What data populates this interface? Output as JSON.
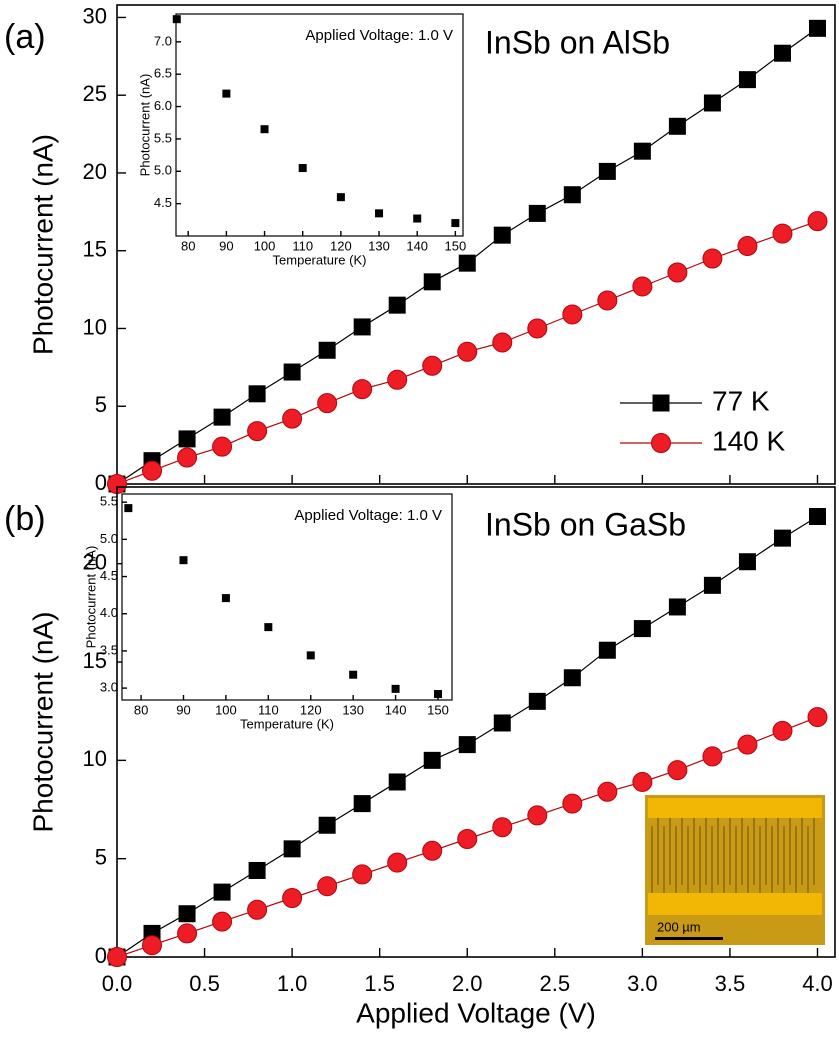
{
  "chart_data": [
    {
      "type": "line",
      "panel_label": "(a)",
      "title": "InSb on AlSb",
      "ylabel": "Photocurrent (nA)",
      "xlim": [
        0,
        4.1
      ],
      "ylim": [
        0,
        30.8
      ],
      "yticks": [
        0,
        5,
        10,
        15,
        20,
        25,
        30
      ],
      "legend": "right",
      "x": [
        0,
        0.2,
        0.4,
        0.6,
        0.8,
        1.0,
        1.2,
        1.4,
        1.6,
        1.8,
        2.0,
        2.2,
        2.4,
        2.6,
        2.8,
        3.0,
        3.2,
        3.4,
        3.6,
        3.8,
        4.0
      ],
      "series": [
        {
          "name": "77 K",
          "color": "#000000",
          "marker": "square",
          "values": [
            0,
            1.5,
            2.9,
            4.3,
            5.8,
            7.2,
            8.6,
            10.1,
            11.5,
            13.0,
            14.2,
            16.0,
            17.4,
            18.6,
            20.1,
            21.4,
            23.0,
            24.5,
            26.0,
            27.7,
            29.3
          ]
        },
        {
          "name": "140 K",
          "color": "#ee1c24",
          "marker": "circle",
          "values": [
            0,
            0.85,
            1.7,
            2.4,
            3.4,
            4.2,
            5.2,
            6.1,
            6.7,
            7.6,
            8.5,
            9.1,
            10.0,
            10.9,
            11.8,
            12.7,
            13.6,
            14.5,
            15.3,
            16.1,
            16.9
          ]
        }
      ]
    },
    {
      "type": "scatter",
      "annotation": "Applied Voltage: 1.0 V",
      "xlabel": "Temperature (K)",
      "ylabel": "Photocurrent (nA)",
      "xlim": [
        76.8,
        152
      ],
      "ylim": [
        4.0,
        7.43
      ],
      "xticks": [
        80,
        90,
        100,
        110,
        120,
        130,
        140,
        150
      ],
      "yticks": [
        {
          "value": 4.5,
          "label": "4.5"
        },
        {
          "value": 5.0,
          "label": "5.0"
        },
        {
          "value": 5.5,
          "label": "5.5"
        },
        {
          "value": 6.0,
          "label": "6.0"
        },
        {
          "value": 6.5,
          "label": "6.5"
        },
        {
          "value": 7.0,
          "label": "7.0"
        }
      ],
      "x": [
        77,
        90,
        100,
        110,
        120,
        130,
        140,
        150
      ],
      "series": [
        {
          "color": "#000000",
          "values": [
            7.35,
            6.2,
            5.65,
            5.05,
            4.6,
            4.35,
            4.27,
            4.2
          ]
        }
      ]
    },
    {
      "type": "line",
      "panel_label": "(b)",
      "title": "InSb on GaSb",
      "ylabel": "Photocurrent (nA)",
      "xlabel": "Applied Voltage (V)",
      "scale_bar_label": "200 µm",
      "xlim": [
        0,
        4.1
      ],
      "ylim": [
        0,
        23.9
      ],
      "yticks": [
        0,
        5,
        10,
        15,
        20
      ],
      "xticks": [
        {
          "value": 0,
          "label": "0.0"
        },
        0.5,
        {
          "value": 1,
          "label": "1.0"
        },
        1.5,
        {
          "value": 2,
          "label": "2.0"
        },
        2.5,
        {
          "value": 3,
          "label": "3.0"
        },
        3.5,
        {
          "value": 4,
          "label": "4.0"
        }
      ],
      "x": [
        0,
        0.2,
        0.4,
        0.6,
        0.8,
        1.0,
        1.2,
        1.4,
        1.6,
        1.8,
        2.0,
        2.2,
        2.4,
        2.6,
        2.8,
        3.0,
        3.2,
        3.4,
        3.6,
        3.8,
        4.0
      ],
      "series": [
        {
          "color": "#000000",
          "marker": "square",
          "values": [
            0,
            1.2,
            2.2,
            3.3,
            4.4,
            5.5,
            6.7,
            7.8,
            8.9,
            10.0,
            10.8,
            11.9,
            13.0,
            14.2,
            15.6,
            16.7,
            17.8,
            18.9,
            20.1,
            21.3,
            22.4
          ]
        },
        {
          "color": "#ee1c24",
          "marker": "circle",
          "values": [
            0,
            0.6,
            1.2,
            1.8,
            2.4,
            3.0,
            3.6,
            4.2,
            4.8,
            5.4,
            6.0,
            6.6,
            7.2,
            7.8,
            8.4,
            8.9,
            9.5,
            10.2,
            10.8,
            11.5,
            12.2
          ]
        }
      ]
    },
    {
      "type": "scatter",
      "annotation": "Applied Voltage: 1.0 V",
      "xlabel": "Temperature (K)",
      "ylabel": "Photocurrent (nA)",
      "xlim": [
        75.5,
        153.3
      ],
      "ylim": [
        2.84,
        5.61
      ],
      "xticks": [
        80,
        90,
        100,
        110,
        120,
        130,
        140,
        150
      ],
      "yticks": [
        {
          "value": 3.0,
          "label": "3.0"
        },
        3.5,
        {
          "value": 4.0,
          "label": "4.0"
        },
        4.5,
        {
          "value": 5.0,
          "label": "5.0"
        },
        5.5
      ],
      "x": [
        77,
        90,
        100,
        110,
        120,
        130,
        140,
        150
      ],
      "series": [
        {
          "color": "#000000",
          "values": [
            5.42,
            4.72,
            4.21,
            3.82,
            3.44,
            3.18,
            2.99,
            2.92
          ]
        }
      ]
    }
  ]
}
